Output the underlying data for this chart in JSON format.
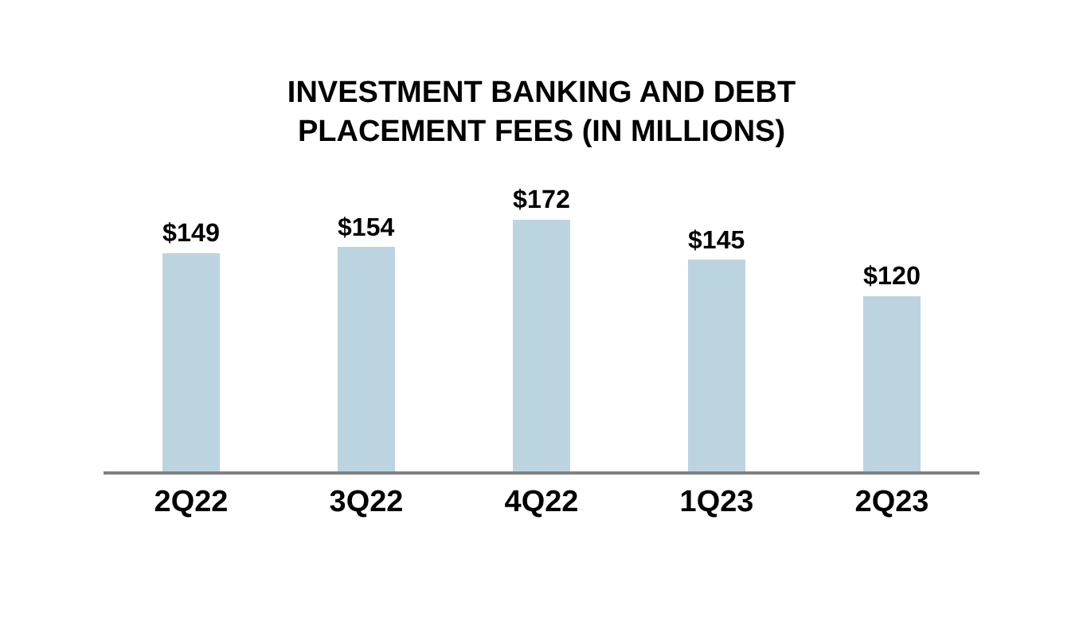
{
  "chart_data": {
    "type": "bar",
    "title": "INVESTMENT BANKING AND DEBT\nPLACEMENT FEES (IN MILLIONS)",
    "categories": [
      "2Q22",
      "3Q22",
      "4Q22",
      "1Q23",
      "2Q23"
    ],
    "values": [
      149,
      154,
      172,
      145,
      120
    ],
    "value_labels": [
      "$149",
      "$154",
      "$172",
      "$145",
      "$120"
    ],
    "color": "#bcd4e0",
    "tick_labels": "x"
  }
}
